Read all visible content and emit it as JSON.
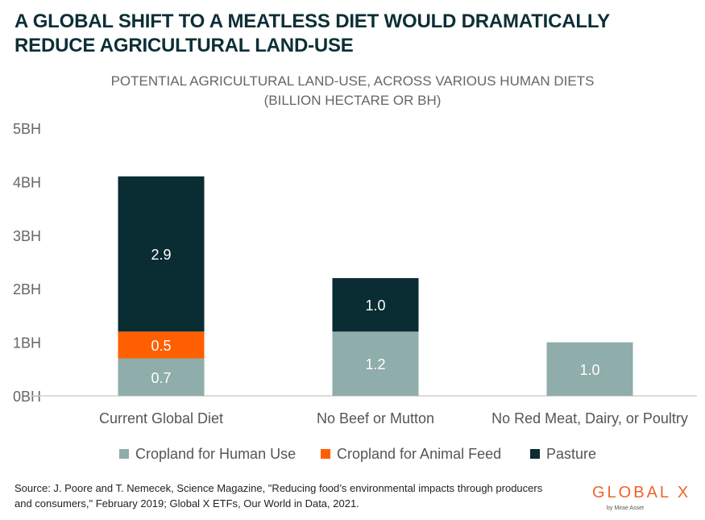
{
  "headline": "A GLOBAL SHIFT TO A MEATLESS DIET WOULD DRAMATICALLY REDUCE AGRICULTURAL LAND-USE",
  "subtitle_line1": "POTENTIAL AGRICULTURAL LAND-USE, ACROSS VARIOUS HUMAN DIETS",
  "subtitle_line2": "(BILLION HECTARE OR BH)",
  "source": "Source: J. Poore and T. Nemecek, Science Magazine, \"Reducing food’s environmental impacts through producers and consumers,\" February 2019; Global X ETFs, Our World in Data, 2021.",
  "logo": {
    "wordmark": "GLOBAL X",
    "tagline": "by Mirae Asset"
  },
  "chart_data": {
    "type": "bar",
    "stacked": true,
    "title": "POTENTIAL AGRICULTURAL LAND-USE, ACROSS VARIOUS HUMAN DIETS (BILLION HECTARE OR BH)",
    "categories": [
      "Current Global Diet",
      "No Beef or Mutton",
      "No Red Meat, Dairy, or Poultry"
    ],
    "series": [
      {
        "name": "Cropland for Human Use",
        "color": "#8fadaa",
        "values": [
          0.7,
          1.2,
          1.0
        ],
        "labels": [
          "0.7",
          "1.2",
          "1.0"
        ]
      },
      {
        "name": "Cropland for Animal Feed",
        "color": "#ff5f00",
        "values": [
          0.5,
          0,
          0
        ],
        "labels": [
          "0.5",
          "",
          ""
        ]
      },
      {
        "name": "Pasture",
        "color": "#0a2c33",
        "values": [
          2.9,
          1.0,
          0
        ],
        "labels": [
          "2.9",
          "1.0",
          ""
        ]
      }
    ],
    "ylim": [
      0,
      5
    ],
    "yticks": [
      0,
      1,
      2,
      3,
      4,
      5
    ],
    "ytick_labels": [
      "0BH",
      "1BH",
      "2BH",
      "3BH",
      "4BH",
      "5BH"
    ],
    "xlabel": "",
    "ylabel": "",
    "legend_position": "bottom-center",
    "grid": false
  }
}
